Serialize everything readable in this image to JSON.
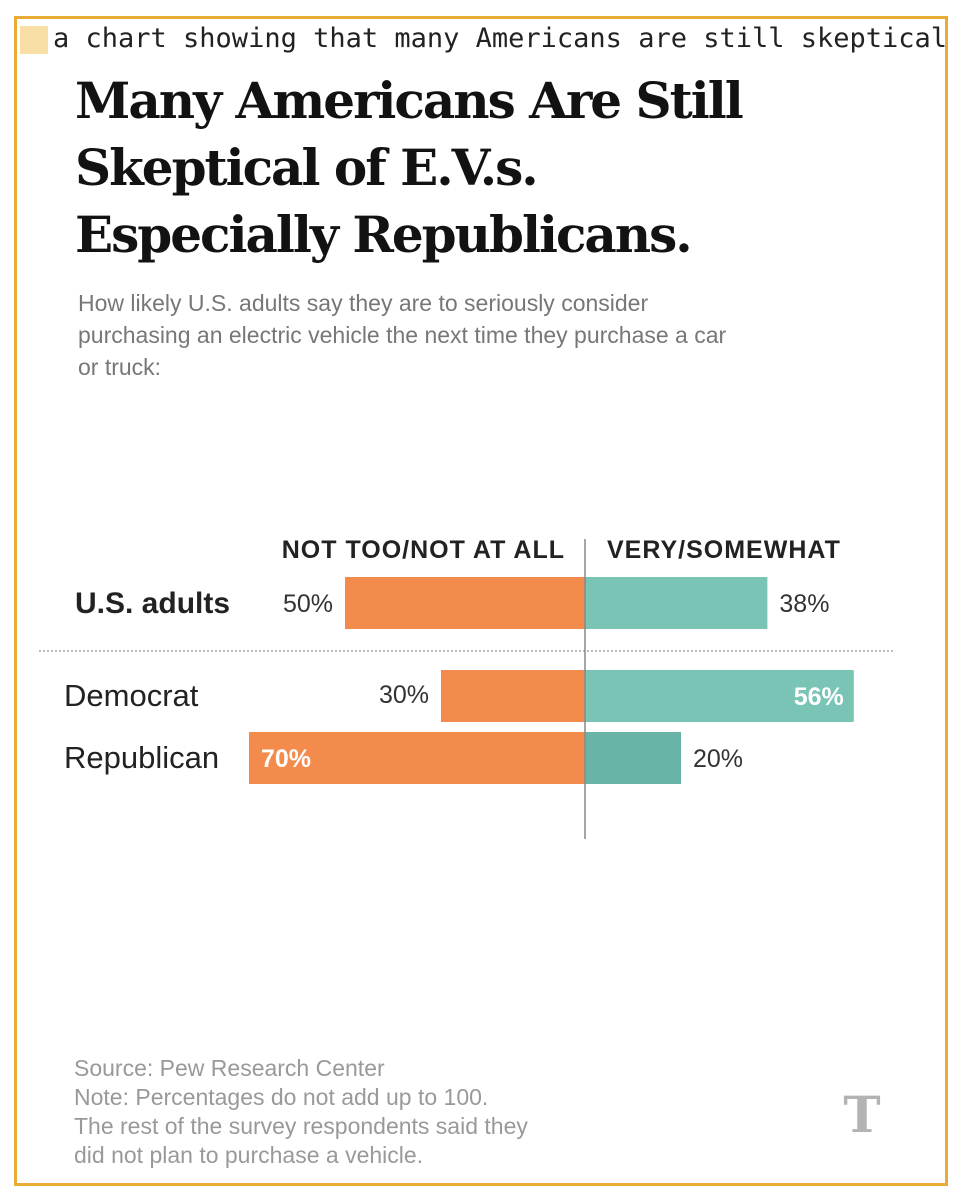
{
  "caption": "a chart showing that many Americans are still skeptical of E.V.s, especially Republicans",
  "title_lines": [
    "Many Americans Are Still",
    "Skeptical of E.V.s.",
    "Especially Republicans."
  ],
  "subtitle": "How likely U.S. adults say they are to seriously consider purchasing an electric vehicle the next time they purchase a car or truck:",
  "chart_data": {
    "type": "bar",
    "orientation": "diverging-horizontal",
    "column_headers": [
      "NOT TOO/NOT AT ALL",
      "VERY/SOMEWHAT"
    ],
    "categories": [
      "U.S. adults",
      "Democrat",
      "Republican"
    ],
    "series": [
      {
        "name": "NOT TOO/NOT AT ALL",
        "values": [
          50,
          30,
          70
        ],
        "labels": [
          "50%",
          "30%",
          "70%"
        ]
      },
      {
        "name": "VERY/SOMEWHAT",
        "values": [
          38,
          56,
          20
        ],
        "labels": [
          "38%",
          "56%",
          "20%"
        ]
      }
    ],
    "grid": false
  },
  "colors": {
    "negative": "#f38b4c",
    "positive": "#7ac4b6",
    "positive_dark": "#68b5a8",
    "axis": "#888888",
    "divider": "#bbbbbb",
    "logo": "#b3b3b3"
  },
  "notes": [
    "Source: Pew Research Center",
    "Note: Percentages do not add up to 100.",
    "The rest of the survey respondents said they",
    "did not plan to purchase a vehicle."
  ],
  "logo_icon": "nyt-logo-icon"
}
